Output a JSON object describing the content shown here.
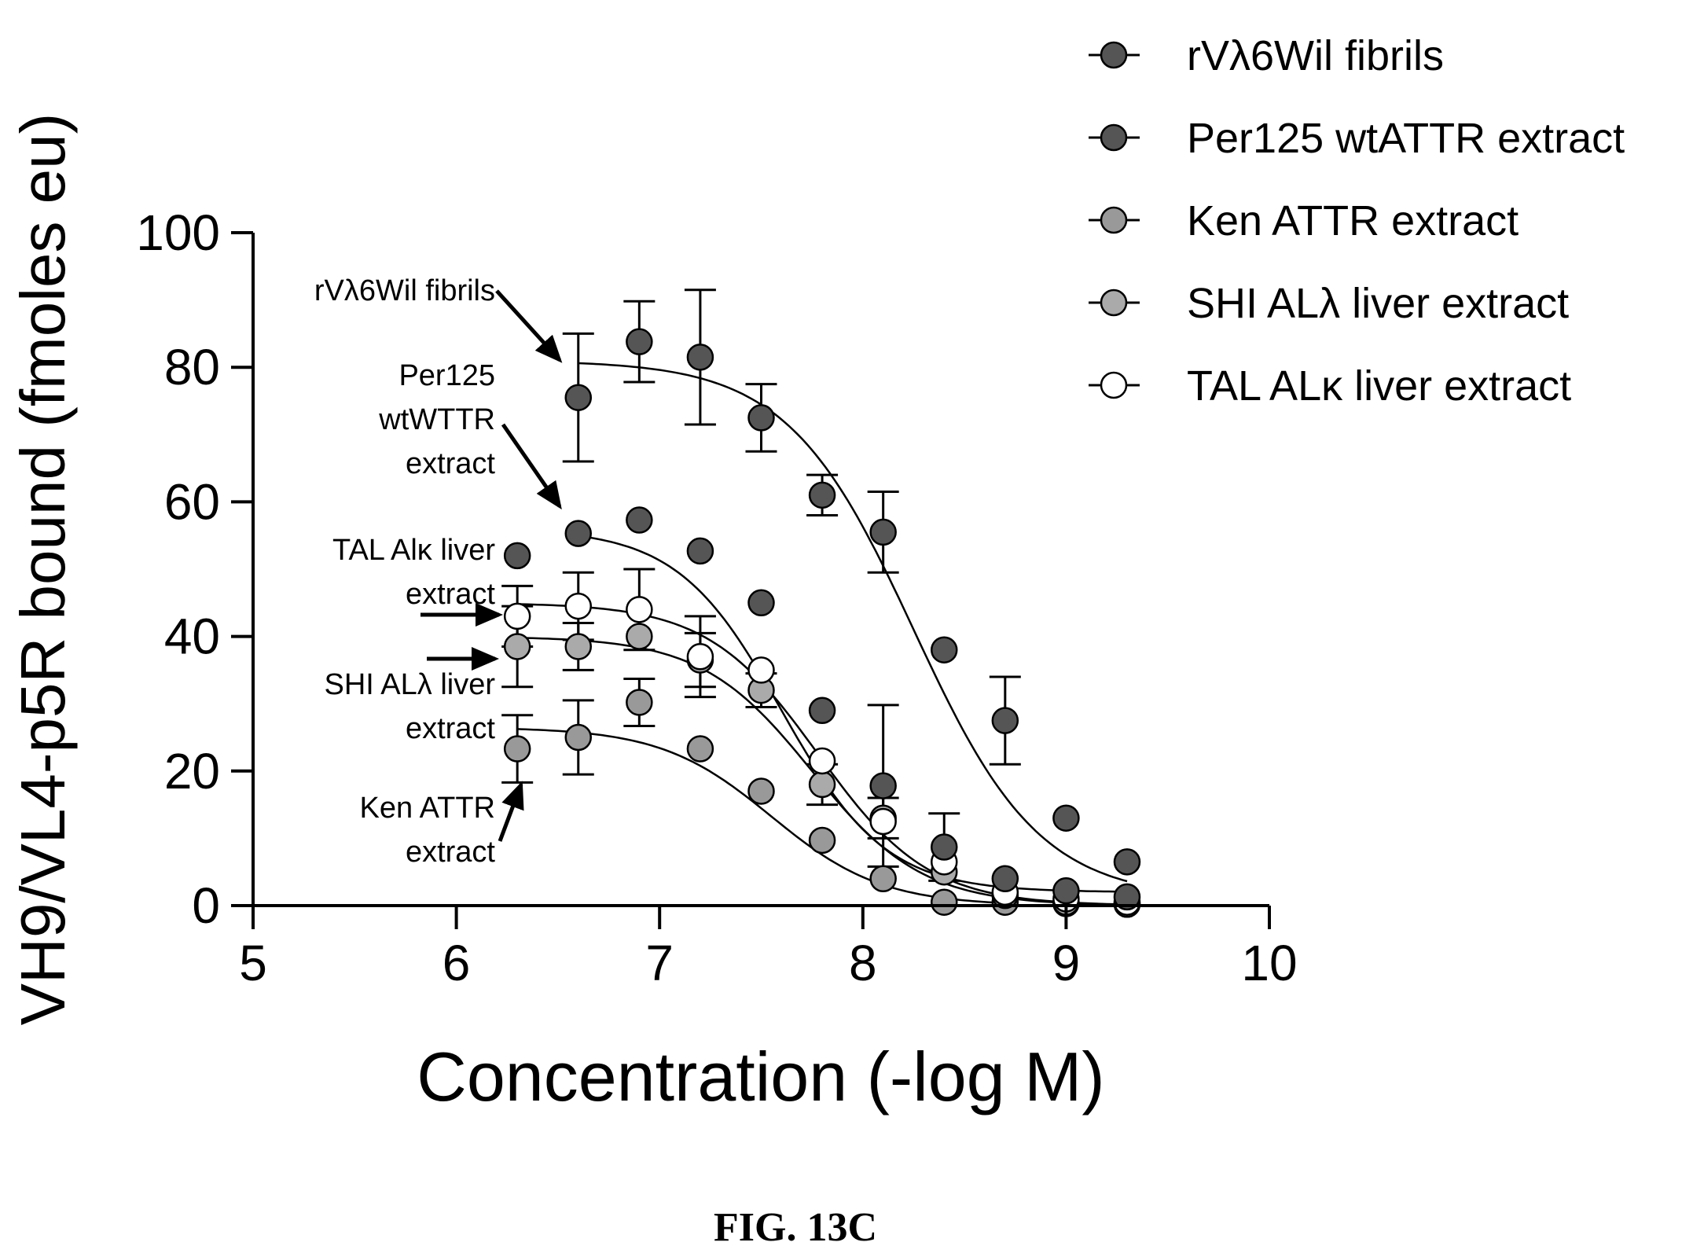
{
  "chart_data": {
    "type": "scatter",
    "xlabel": "Concentration (-log M)",
    "ylabel": "VH9/VL4-p5R bound (fmoles eu)",
    "xlim": [
      5,
      10
    ],
    "ylim": [
      0,
      100
    ],
    "x_ticks": [
      "5",
      "6",
      "7",
      "8",
      "9",
      "10"
    ],
    "y_ticks": [
      "0",
      "20",
      "40",
      "60",
      "80",
      "100"
    ],
    "grid": false,
    "legend_position": "top-right",
    "series": [
      {
        "name": "rVλ6Wil fibrils",
        "color": "#555555",
        "x": [
          6.6,
          6.9,
          7.2,
          7.5,
          7.8,
          8.1,
          8.4,
          8.7,
          9.0,
          9.3
        ],
        "y": [
          75.5,
          83.8,
          81.5,
          72.5,
          61.0,
          55.5,
          38.0,
          27.5,
          13.0,
          6.5
        ],
        "error": [
          9.5,
          6.0,
          10.0,
          5.0,
          3.0,
          6.0,
          0,
          6.5,
          0,
          0
        ],
        "fit": {
          "top": 81,
          "bottom": 1,
          "ec50": 8.25,
          "slope": 1.4,
          "x_start": 6.6,
          "x_end": 9.3
        }
      },
      {
        "name": "Per125 wtATTR extract",
        "color": "#555555",
        "x": [
          6.3,
          6.6,
          6.9,
          7.2,
          7.5,
          7.8,
          8.1,
          8.4,
          8.7,
          9.0,
          9.3
        ],
        "y": [
          52.0,
          55.3,
          57.3,
          52.7,
          45.0,
          29.0,
          17.8,
          8.7,
          4.0,
          2.2,
          1.3
        ],
        "error": [
          0,
          0,
          0,
          0,
          0,
          0,
          12.0,
          5.0,
          0,
          0,
          0
        ],
        "fit": {
          "top": 56,
          "bottom": 2,
          "ec50": 7.6,
          "slope": 1.7,
          "x_start": 6.6,
          "x_end": 9.3
        }
      },
      {
        "name": "Ken ATTR extract",
        "color": "#999999",
        "x": [
          6.3,
          6.6,
          6.9,
          7.2,
          7.5,
          7.8,
          8.1,
          8.4,
          8.7,
          9.0,
          9.3
        ],
        "y": [
          23.3,
          25.0,
          30.2,
          23.3,
          17.0,
          9.7,
          4.0,
          0.5,
          0.5,
          0.3,
          0.2
        ],
        "error": [
          5.0,
          5.5,
          3.5,
          0,
          0,
          0,
          0,
          0,
          0,
          0,
          0
        ],
        "fit": {
          "top": 26.5,
          "bottom": 0,
          "ec50": 7.55,
          "slope": 1.6,
          "x_start": 6.3,
          "x_end": 8.7
        }
      },
      {
        "name": "SHI ALλ liver extract",
        "color": "#aaaaaa",
        "x": [
          6.3,
          6.6,
          6.9,
          7.2,
          7.5,
          7.8,
          8.1,
          8.4,
          8.7,
          9.0,
          9.3
        ],
        "y": [
          38.5,
          38.5,
          40.0,
          36.5,
          32.0,
          18.0,
          13.0,
          5.0,
          1.5,
          0.5,
          0.2
        ],
        "error": [
          6.0,
          3.5,
          0,
          4.0,
          2.5,
          3.0,
          3.0,
          0,
          0,
          0,
          0
        ],
        "fit": {
          "top": 40,
          "bottom": 0,
          "ec50": 7.75,
          "slope": 1.6,
          "x_start": 6.3,
          "x_end": 9.3
        }
      },
      {
        "name": "TAL ALκ liver extract",
        "color": "#ffffff",
        "x": [
          6.3,
          6.6,
          6.9,
          7.2,
          7.5,
          7.8,
          8.1,
          8.4,
          8.7,
          9.0,
          9.3
        ],
        "y": [
          43.0,
          44.5,
          44.0,
          37.0,
          35.0,
          21.5,
          12.5,
          6.5,
          2.0,
          1.0,
          0.5
        ],
        "error": [
          4.5,
          5.0,
          6.0,
          6.0,
          0,
          0,
          0,
          0,
          0,
          0,
          0
        ],
        "fit": {
          "top": 45,
          "bottom": 0,
          "ec50": 7.78,
          "slope": 1.6,
          "x_start": 6.3,
          "x_end": 9.3
        }
      }
    ],
    "annotations": [
      {
        "lines": [
          "rVλ6Wil fibrils"
        ],
        "target_series": 0
      },
      {
        "lines": [
          "Per125",
          "wtWTTR",
          "extract"
        ],
        "target_series": 1
      },
      {
        "lines": [
          "TAL Alκ liver",
          "extract"
        ],
        "target_series": 4
      },
      {
        "lines": [
          "SHI ALλ liver",
          "extract"
        ],
        "target_series": 3
      },
      {
        "lines": [
          "Ken ATTR",
          "extract"
        ],
        "target_series": 2
      }
    ]
  },
  "caption": "FIG. 13C"
}
